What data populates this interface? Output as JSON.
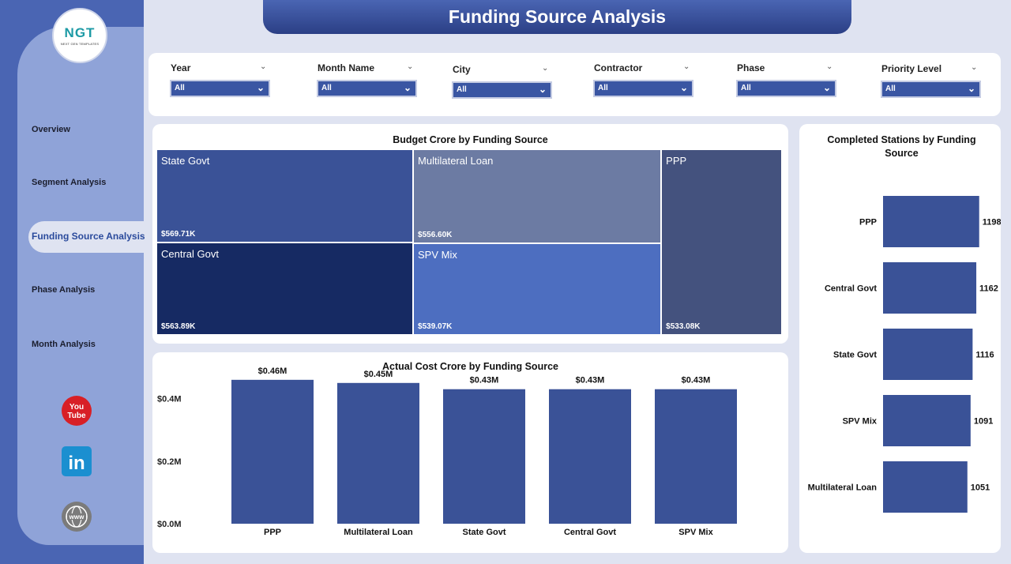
{
  "app": {
    "title": "Funding Source Analysis",
    "logo_text": "NGT",
    "logo_sub": "NEXT GEN TEMPLATES"
  },
  "sidebar": {
    "items": [
      {
        "label": "Overview"
      },
      {
        "label": "Segment Analysis"
      },
      {
        "label": "Funding Source Analysis",
        "active": true
      },
      {
        "label": "Phase Analysis"
      },
      {
        "label": "Month Analysis"
      }
    ],
    "social": [
      {
        "icon": "youtube-icon",
        "text": "You Tube"
      },
      {
        "icon": "linkedin-icon",
        "text": "in"
      },
      {
        "icon": "website-icon",
        "text": "www"
      }
    ]
  },
  "filters": [
    {
      "label": "Year",
      "value": "All"
    },
    {
      "label": "Month Name",
      "value": "All"
    },
    {
      "label": "City",
      "value": "All"
    },
    {
      "label": "Contractor",
      "value": "All"
    },
    {
      "label": "Phase",
      "value": "All"
    },
    {
      "label": "Priority Level",
      "value": "All"
    }
  ],
  "colors": {
    "bar": "#3a5297",
    "header": "#2b3f85",
    "sidebar": "#4a65b3"
  },
  "chart_data": [
    {
      "type": "treemap",
      "title": "Budget Crore by Funding Source",
      "items": [
        {
          "name": "State Govt",
          "value": 569.71,
          "label": "$569.71K",
          "color": "#3a5297"
        },
        {
          "name": "Central Govt",
          "value": 563.89,
          "label": "$563.89K",
          "color": "#162a63"
        },
        {
          "name": "Multilateral Loan",
          "value": 556.6,
          "label": "$556.60K",
          "color": "#6c7ba3"
        },
        {
          "name": "SPV Mix",
          "value": 539.07,
          "label": "$539.07K",
          "color": "#4d6ec0"
        },
        {
          "name": "PPP",
          "value": 533.08,
          "label": "$533.08K",
          "color": "#44527e"
        }
      ]
    },
    {
      "type": "bar",
      "title": "Actual Cost Crore by Funding Source",
      "categories": [
        "PPP",
        "Multilateral Loan",
        "State Govt",
        "Central Govt",
        "SPV Mix"
      ],
      "values": [
        0.46,
        0.45,
        0.43,
        0.43,
        0.43
      ],
      "data_labels": [
        "$0.46M",
        "$0.45M",
        "$0.43M",
        "$0.43M",
        "$0.43M"
      ],
      "y_ticks": [
        0,
        0.2,
        0.4
      ],
      "y_tick_labels": [
        "$0.0M",
        "$0.2M",
        "$0.4M"
      ],
      "ylim": [
        0,
        0.5
      ]
    },
    {
      "type": "bar",
      "orientation": "horizontal",
      "title": "Completed Stations by Funding Source",
      "categories": [
        "PPP",
        "Central Govt",
        "State Govt",
        "SPV Mix",
        "Multilateral Loan"
      ],
      "values": [
        1198,
        1162,
        1116,
        1091,
        1051
      ],
      "xlim": [
        0,
        1250
      ]
    }
  ]
}
